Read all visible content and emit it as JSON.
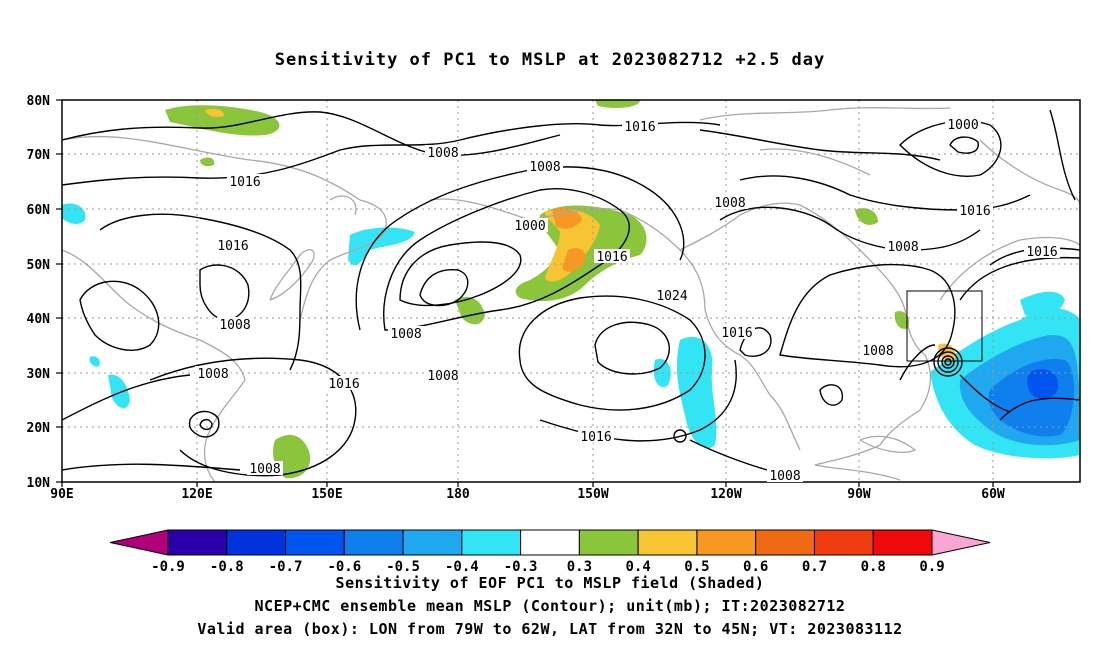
{
  "title": "Sensitivity of PC1 to MSLP at 2023082712 +2.5 day",
  "lat_labels": [
    "80N",
    "70N",
    "60N",
    "50N",
    "40N",
    "30N",
    "20N",
    "10N"
  ],
  "lon_labels": [
    "90E",
    "120E",
    "150E",
    "180",
    "150W",
    "120W",
    "90W",
    "60W"
  ],
  "colorbar": {
    "labels": [
      "-0.9",
      "-0.8",
      "-0.7",
      "-0.6",
      "-0.5",
      "-0.4",
      "-0.3",
      "0.3",
      "0.4",
      "0.5",
      "0.6",
      "0.7",
      "0.8",
      "0.9"
    ],
    "colors": [
      "#2a00aa",
      "#0033dd",
      "#0055ee",
      "#0f7fee",
      "#1fa8ef",
      "#33e4f5",
      "#ffffff",
      "#8ac53b",
      "#f7c433",
      "#f79822",
      "#f06a16",
      "#ee3c0e",
      "#ee0a0a"
    ],
    "low_arrow_color": "#b0007a",
    "high_arrow_color": "#f7a7d2"
  },
  "contour_labels": [
    "1016",
    "1008",
    "1016",
    "1008",
    "1000",
    "1016",
    "1024",
    "1008",
    "1016",
    "1008",
    "1016",
    "1008",
    "1000",
    "1008",
    "1016",
    "1008",
    "1008",
    "1016",
    "1016",
    "1008",
    "1008",
    "1016",
    "1008"
  ],
  "captions": [
    "Sensitivity of EOF PC1 to MSLP field (Shaded)",
    "NCEP+CMC ensemble mean MSLP (Contour); unit(mb); IT:2023082712",
    "Valid area (box): LON from 79W to 62W, LAT from 32N to 45N; VT: 2023083112"
  ]
}
